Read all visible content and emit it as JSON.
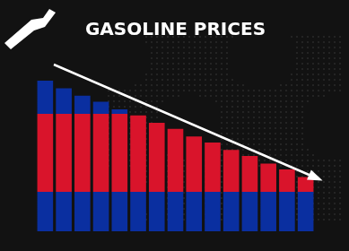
{
  "chart_data": {
    "type": "bar",
    "title": "GASOLINE PRICES",
    "categories": [
      null,
      null,
      null,
      null,
      null,
      null,
      null,
      null,
      null,
      null,
      null,
      null,
      null,
      null,
      null
    ],
    "values": [
      100,
      95,
      90,
      86,
      81,
      77,
      72,
      68,
      63,
      59,
      54,
      50,
      45,
      41,
      36
    ],
    "ylim": [
      0,
      100
    ],
    "grid": false,
    "tick_labels": false
  }
}
